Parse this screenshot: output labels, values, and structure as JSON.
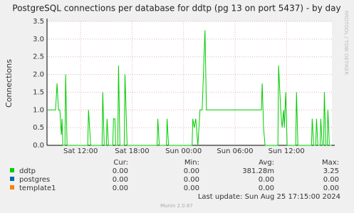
{
  "chart_data": {
    "type": "line",
    "title": "PostgreSQL connections per database for ddtp (pg 13 on port 5437) - by day",
    "ylabel": "Connections",
    "watermark": "RRDTOOL / TOBI OETIKER",
    "x": [
      8.08,
      9.08,
      9.25,
      9.42,
      9.58,
      9.75,
      9.83,
      9.92,
      10.17,
      10.25,
      10.42,
      12.83,
      12.92,
      13.17,
      14.5,
      14.58,
      14.75,
      15.0,
      15.08,
      15.25,
      15.75,
      15.83,
      16.0,
      16.08,
      16.33,
      16.42,
      16.58,
      17.08,
      17.17,
      17.42,
      20.92,
      21.0,
      21.17,
      22.0,
      22.08,
      22.25,
      25.0,
      25.08,
      25.25,
      25.42,
      25.67,
      25.92,
      26.17,
      26.5,
      26.67,
      33.08,
      33.17,
      33.33,
      33.5,
      35.0,
      35.08,
      35.33,
      35.5,
      35.67,
      35.75,
      35.92,
      36.08,
      37.08,
      37.17,
      37.33,
      38.92,
      39.0,
      39.17,
      39.42,
      39.5,
      39.67,
      39.92,
      40.0,
      40.17,
      40.33,
      40.42,
      40.58,
      40.75,
      40.83,
      41.0,
      41.25
    ],
    "xlim": [
      8.08,
      41.3
    ],
    "xticks": [
      {
        "value": 12,
        "label": "Sat 12:00"
      },
      {
        "value": 18,
        "label": "Sat 18:00"
      },
      {
        "value": 24,
        "label": "Sun 00:00"
      },
      {
        "value": 30,
        "label": "Sun 06:00"
      },
      {
        "value": 36,
        "label": "Sun 12:00"
      }
    ],
    "ylim": [
      0,
      3.5
    ],
    "yticks": [
      {
        "value": 0,
        "label": "0.0"
      },
      {
        "value": 0.5,
        "label": "0.5"
      },
      {
        "value": 1,
        "label": "1.0"
      },
      {
        "value": 1.5,
        "label": "1.5"
      },
      {
        "value": 2,
        "label": "2.0"
      },
      {
        "value": 2.5,
        "label": "2.5"
      },
      {
        "value": 3,
        "label": "3.0"
      },
      {
        "value": 3.5,
        "label": "3.5"
      }
    ],
    "grid": true,
    "series": [
      {
        "name": "ddtp",
        "color": "#00cc00",
        "values": [
          1.0,
          1.0,
          1.75,
          1.0,
          1.0,
          0.3,
          0.75,
          0,
          0,
          2.0,
          0,
          0,
          1.0,
          0,
          0,
          1.5,
          0,
          0,
          0.75,
          0,
          0,
          0.75,
          0.75,
          0,
          0,
          2.25,
          0,
          0,
          2.0,
          0,
          0,
          0.75,
          0,
          0,
          0.75,
          0,
          0,
          0.75,
          0.5,
          0.75,
          0,
          1.0,
          1.0,
          3.25,
          1.0,
          1.0,
          1.75,
          0.5,
          0,
          0,
          2.25,
          1.0,
          0.5,
          1.0,
          0.5,
          1.5,
          0,
          0,
          1.5,
          0,
          0,
          0.75,
          0,
          0,
          0.75,
          0,
          0,
          0.75,
          0,
          0,
          1.5,
          0,
          0,
          1.0,
          0,
          0
        ]
      },
      {
        "name": "postgres",
        "color": "#0066b3"
      },
      {
        "name": "template1",
        "color": "#ff8000"
      }
    ],
    "stats_headers": [
      "Cur:",
      "Min:",
      "Avg:",
      "Max:"
    ],
    "stats": [
      [
        "0.00",
        "0.00",
        "381.28m",
        "3.25"
      ],
      [
        "0.00",
        "0.00",
        "0.00",
        "0.00"
      ],
      [
        "0.00",
        "0.00",
        "0.00",
        "0.00"
      ]
    ],
    "last_update": "Last update: Sun Aug 25 17:15:00 2024",
    "footer": "Munin 2.0.67"
  }
}
